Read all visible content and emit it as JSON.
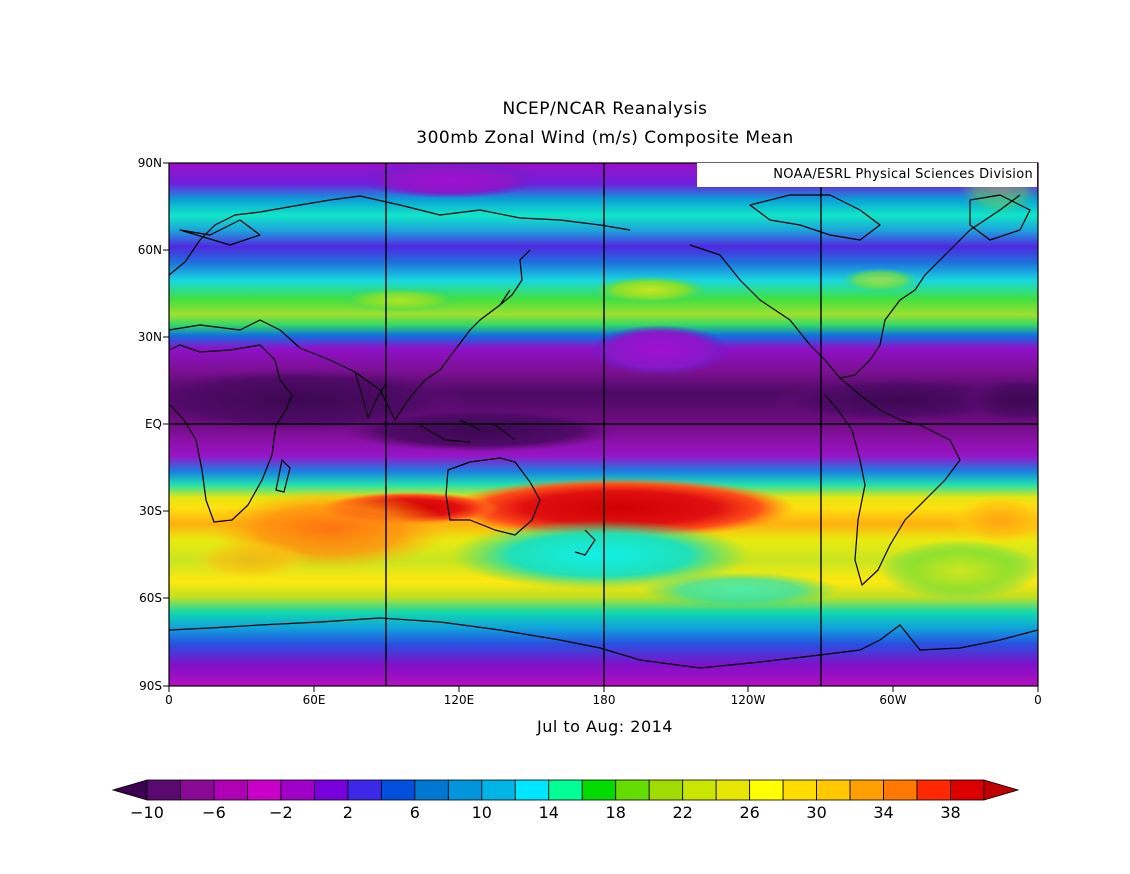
{
  "header": {
    "line1": "NCEP/NCAR Reanalysis",
    "line2": "300mb Zonal Wind (m/s) Composite Mean"
  },
  "credit": "NOAA/ESRL Physical Sciences Division",
  "period": "Jul to Aug: 2014",
  "axes": {
    "lat_labels": [
      "90N",
      "60N",
      "30N",
      "EQ",
      "30S",
      "60S",
      "90S"
    ],
    "lon_labels": [
      "0",
      "60E",
      "120E",
      "180",
      "120W",
      "60W",
      "0"
    ],
    "gridlines_lon": [
      "90E",
      "180",
      "90W"
    ],
    "gridline_lat": "EQ"
  },
  "colorbar": {
    "labels": [
      "−10",
      "−6",
      "−2",
      "2",
      "6",
      "10",
      "14",
      "18",
      "22",
      "26",
      "30",
      "34",
      "38"
    ],
    "colors": [
      "#3c0050",
      "#5a0a6e",
      "#8a0a96",
      "#b000b4",
      "#c800c8",
      "#a000c8",
      "#7800dc",
      "#3c28e6",
      "#0050dc",
      "#0078d2",
      "#0096dc",
      "#00b4e6",
      "#00e6ff",
      "#00ff96",
      "#00dc00",
      "#64dc00",
      "#a0dc00",
      "#c8e600",
      "#e6e600",
      "#ffff00",
      "#ffdc00",
      "#ffc800",
      "#ffa000",
      "#ff7800",
      "#ff2800",
      "#dc0000",
      "#c00000"
    ],
    "units": "m/s",
    "min": -10,
    "max": 38,
    "step": 2
  },
  "field_bands": [
    {
      "lat": "75N",
      "speed": 12
    },
    {
      "lat": "45N",
      "speed": 20
    },
    {
      "lat": "35N",
      "speed": 10
    },
    {
      "lat": "10N",
      "speed": -6
    },
    {
      "lat": "EQ",
      "speed": -2
    },
    {
      "lat": "30S",
      "speed": 32
    },
    {
      "lat": "45S",
      "speed": 20
    },
    {
      "lat": "60S",
      "speed": 20
    },
    {
      "lat": "75S",
      "speed": 6
    }
  ],
  "features": [
    {
      "name": "subtropical-jet-core",
      "region": "160E-130W, 28S",
      "speed": 38
    }
  ]
}
